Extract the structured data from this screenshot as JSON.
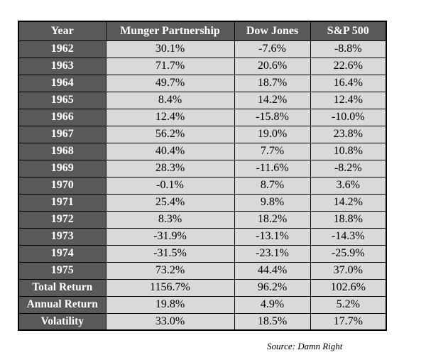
{
  "table": {
    "headers": [
      "Year",
      "Munger Partnership",
      "Dow Jones",
      "S&P 500"
    ],
    "rows": [
      {
        "label": "1962",
        "munger": "30.1%",
        "dow": "-7.6%",
        "sp": "-8.8%"
      },
      {
        "label": "1963",
        "munger": "71.7%",
        "dow": "20.6%",
        "sp": "22.6%"
      },
      {
        "label": "1964",
        "munger": "49.7%",
        "dow": "18.7%",
        "sp": "16.4%"
      },
      {
        "label": "1965",
        "munger": "8.4%",
        "dow": "14.2%",
        "sp": "12.4%"
      },
      {
        "label": "1966",
        "munger": "12.4%",
        "dow": "-15.8%",
        "sp": "-10.0%"
      },
      {
        "label": "1967",
        "munger": "56.2%",
        "dow": "19.0%",
        "sp": "23.8%"
      },
      {
        "label": "1968",
        "munger": "40.4%",
        "dow": "7.7%",
        "sp": "10.8%"
      },
      {
        "label": "1969",
        "munger": "28.3%",
        "dow": "-11.6%",
        "sp": "-8.2%"
      },
      {
        "label": "1970",
        "munger": "-0.1%",
        "dow": "8.7%",
        "sp": "3.6%"
      },
      {
        "label": "1971",
        "munger": "25.4%",
        "dow": "9.8%",
        "sp": "14.2%"
      },
      {
        "label": "1972",
        "munger": "8.3%",
        "dow": "18.2%",
        "sp": "18.8%"
      },
      {
        "label": "1973",
        "munger": "-31.9%",
        "dow": "-13.1%",
        "sp": "-14.3%"
      },
      {
        "label": "1974",
        "munger": "-31.5%",
        "dow": "-23.1%",
        "sp": "-25.9%"
      },
      {
        "label": "1975",
        "munger": "73.2%",
        "dow": "44.4%",
        "sp": "37.0%"
      }
    ],
    "summary": [
      {
        "label": "Total Return",
        "munger": "1156.7%",
        "dow": "96.2%",
        "sp": "102.6%"
      },
      {
        "label": "Annual Return",
        "munger": "19.8%",
        "dow": "4.9%",
        "sp": "5.2%"
      },
      {
        "label": "Volatility",
        "munger": "33.0%",
        "dow": "18.5%",
        "sp": "17.7%"
      }
    ]
  },
  "source": "Source: Damn Right",
  "colors": {
    "header_fill": "#595959",
    "cell_fill": "#d9d9d9",
    "header_text": "#ffffff",
    "border": "#000000"
  }
}
